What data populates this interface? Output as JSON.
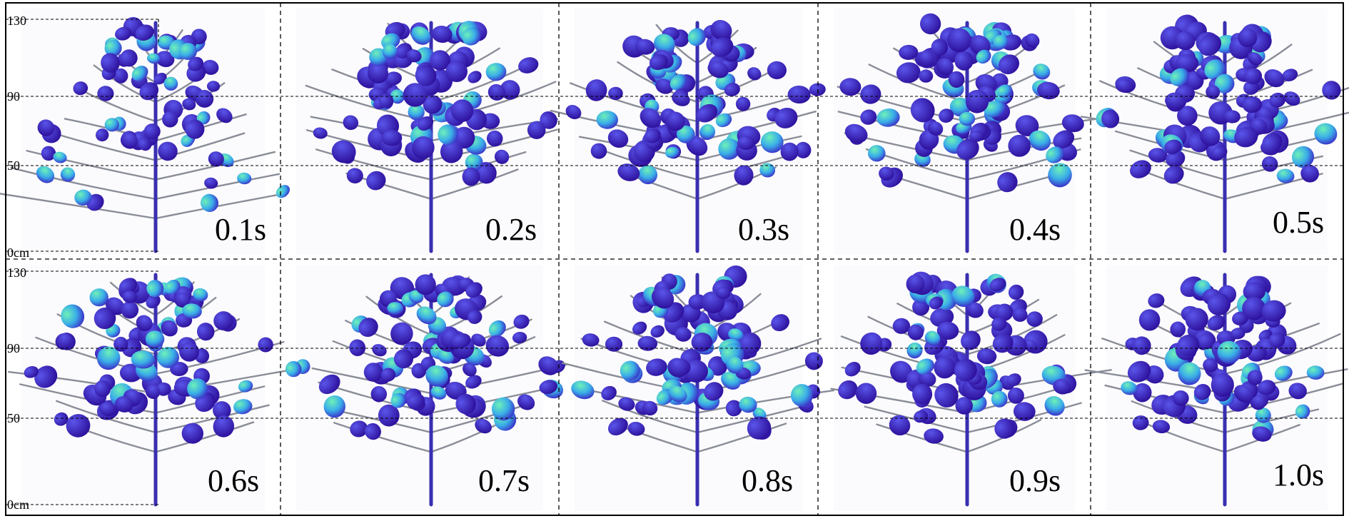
{
  "figure": {
    "y_ticks": [
      "130",
      "90",
      "50",
      "0cm"
    ],
    "colors": {
      "leaf_dark": "#3a12b8",
      "leaf_mid": "#4a3ee0",
      "leaf_light": "#3ec0e6",
      "leaf_highlight": "#58e8b0",
      "stem": "#3a2fb0",
      "branch": "#8a8d98",
      "grid": "#000000"
    },
    "panels": [
      {
        "time": "0.1s"
      },
      {
        "time": "0.2s"
      },
      {
        "time": "0.3s"
      },
      {
        "time": "0.4s"
      },
      {
        "time": "0.5s"
      },
      {
        "time": "0.6s"
      },
      {
        "time": "0.7s"
      },
      {
        "time": "0.8s"
      },
      {
        "time": "0.9s"
      },
      {
        "time": "1.0s"
      }
    ]
  }
}
